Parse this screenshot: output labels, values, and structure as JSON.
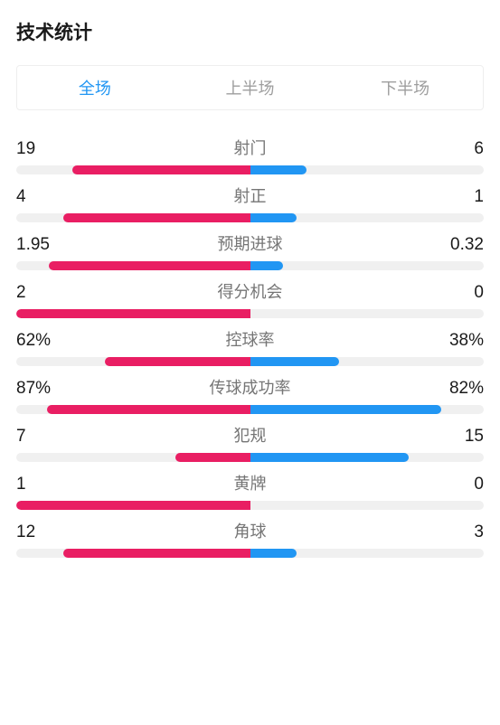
{
  "title": "技术统计",
  "tabs": {
    "full": "全场",
    "first_half": "上半场",
    "second_half": "下半场",
    "active_index": 0
  },
  "colors": {
    "left_bar": "#e91e63",
    "right_bar": "#2196f3",
    "bar_bg": "#f0f0f0",
    "tab_active": "#2196f3",
    "tab_inactive": "#9e9e9e",
    "label": "#757575",
    "value": "#1a1a1a"
  },
  "stats": [
    {
      "label": "射门",
      "left_text": "19",
      "right_text": "6",
      "left_pct": 76,
      "right_pct": 24
    },
    {
      "label": "射正",
      "left_text": "4",
      "right_text": "1",
      "left_pct": 80,
      "right_pct": 20
    },
    {
      "label": "预期进球",
      "left_text": "1.95",
      "right_text": "0.32",
      "left_pct": 86,
      "right_pct": 14
    },
    {
      "label": "得分机会",
      "left_text": "2",
      "right_text": "0",
      "left_pct": 100,
      "right_pct": 0
    },
    {
      "label": "控球率",
      "left_text": "62%",
      "right_text": "38%",
      "left_pct": 62,
      "right_pct": 38
    },
    {
      "label": "传球成功率",
      "left_text": "87%",
      "right_text": "82%",
      "left_pct": 87,
      "right_pct": 82
    },
    {
      "label": "犯规",
      "left_text": "7",
      "right_text": "15",
      "left_pct": 32,
      "right_pct": 68
    },
    {
      "label": "黄牌",
      "left_text": "1",
      "right_text": "0",
      "left_pct": 100,
      "right_pct": 0
    },
    {
      "label": "角球",
      "left_text": "12",
      "right_text": "3",
      "left_pct": 80,
      "right_pct": 20
    }
  ]
}
